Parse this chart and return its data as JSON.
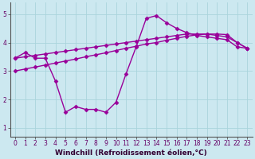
{
  "xlabel": "Windchill (Refroidissement éolien,°C)",
  "bg_color": "#cce8f0",
  "line_color": "#990099",
  "xlim": [
    -0.5,
    23.5
  ],
  "ylim": [
    0.7,
    5.4
  ],
  "xticks": [
    0,
    1,
    2,
    3,
    4,
    5,
    6,
    7,
    8,
    9,
    10,
    11,
    12,
    13,
    14,
    15,
    16,
    17,
    18,
    19,
    20,
    21,
    22,
    23
  ],
  "yticks": [
    1,
    2,
    3,
    4,
    5
  ],
  "grid_color": "#aad4dc",
  "series1_x": [
    0,
    1,
    2,
    3,
    4,
    5,
    6,
    7,
    8,
    9,
    10,
    11,
    12,
    13,
    14,
    15,
    16,
    17,
    18,
    19,
    20,
    21,
    22,
    23
  ],
  "series1_y": [
    3.45,
    3.65,
    3.45,
    3.45,
    2.65,
    1.55,
    1.75,
    1.65,
    1.65,
    1.55,
    1.9,
    2.9,
    3.85,
    4.85,
    4.95,
    4.7,
    4.5,
    4.35,
    4.25,
    4.2,
    4.15,
    4.1,
    3.85,
    3.8
  ],
  "series2_x": [
    0,
    1,
    2,
    3,
    4,
    5,
    6,
    7,
    8,
    9,
    10,
    11,
    12,
    13,
    14,
    15,
    16,
    17,
    18,
    19,
    20,
    21,
    22,
    23
  ],
  "series2_y": [
    3.45,
    3.5,
    3.55,
    3.6,
    3.65,
    3.7,
    3.75,
    3.8,
    3.85,
    3.9,
    3.95,
    4.0,
    4.05,
    4.1,
    4.15,
    4.2,
    4.25,
    4.3,
    4.3,
    4.3,
    4.25,
    4.2,
    4.0,
    3.8
  ],
  "series3_x": [
    0,
    1,
    2,
    3,
    4,
    5,
    6,
    7,
    8,
    9,
    10,
    11,
    12,
    13,
    14,
    15,
    16,
    17,
    18,
    19,
    20,
    21,
    22,
    23
  ],
  "series3_y": [
    3.0,
    3.07,
    3.14,
    3.21,
    3.28,
    3.35,
    3.42,
    3.5,
    3.57,
    3.64,
    3.72,
    3.8,
    3.87,
    3.95,
    4.0,
    4.08,
    4.15,
    4.22,
    4.27,
    4.3,
    4.3,
    4.28,
    4.0,
    3.8
  ],
  "marker": "D",
  "markersize": 2.5,
  "linewidth": 1.0,
  "tick_fontsize": 5.5,
  "xlabel_fontsize": 6.5
}
